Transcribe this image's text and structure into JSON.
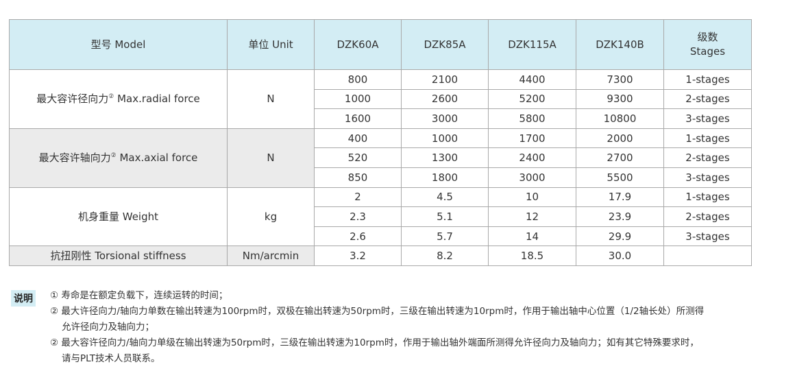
{
  "table": {
    "header": {
      "model": "型号 Model",
      "unit": "单位 Unit",
      "models": [
        "DZK60A",
        "DZK85A",
        "DZK115A",
        "DZK140B"
      ],
      "stages_cn": "级数",
      "stages_en": "Stages"
    },
    "groups": [
      {
        "label": "最大容许径向力",
        "sup": "②",
        "label_en": "Max.radial force",
        "unit": "N",
        "rows": [
          {
            "values": [
              "800",
              "2100",
              "4400",
              "7300"
            ],
            "stage": "1-stages"
          },
          {
            "values": [
              "1000",
              "2600",
              "5200",
              "9300"
            ],
            "stage": "2-stages"
          },
          {
            "values": [
              "1600",
              "3000",
              "5800",
              "10800"
            ],
            "stage": "3-stages"
          }
        ]
      },
      {
        "label": "最大容许轴向力",
        "sup": "②",
        "label_en": "Max.axial force",
        "unit": "N",
        "rows": [
          {
            "values": [
              "400",
              "1000",
              "1700",
              "2000"
            ],
            "stage": "1-stages"
          },
          {
            "values": [
              "520",
              "1300",
              "2400",
              "2700"
            ],
            "stage": "2-stages"
          },
          {
            "values": [
              "850",
              "1800",
              "3000",
              "5500"
            ],
            "stage": "3-stages"
          }
        ]
      },
      {
        "label": "机身重量 Weight",
        "unit": "kg",
        "rows": [
          {
            "values": [
              "2",
              "4.5",
              "10",
              "17.9"
            ],
            "stage": "1-stages"
          },
          {
            "values": [
              "2.3",
              "5.1",
              "12",
              "23.9"
            ],
            "stage": "2-stages"
          },
          {
            "values": [
              "2.6",
              "5.7",
              "14",
              "29.9"
            ],
            "stage": "3-stages"
          }
        ]
      }
    ],
    "torsional": {
      "label": "抗扭刚性 Torsional stiffness",
      "unit": "Nm/arcmin",
      "values": [
        "3.2",
        "8.2",
        "18.5",
        "30.0"
      ],
      "stage": ""
    }
  },
  "notes": {
    "tag": "说明",
    "lines": [
      "① 寿命是在额定负载下，连续运转的时间；",
      "② 最大许径向力/轴向力单数在输出转速为100rpm时，双极在输出转速为50rpm时，三级在输出转速为10rpm时，作用于输出轴中心位置（1/2轴长处）所测得",
      "允许径向力及轴向力；",
      "② 最大容许径向力/轴向力单级在输出转速为50rpm时，三级在输出转速为10rpm时，作用于输出轴外端面所测得允许径向力及轴向力；如有其它特殊要求时，",
      "请与PLT技术人员联系。"
    ]
  }
}
